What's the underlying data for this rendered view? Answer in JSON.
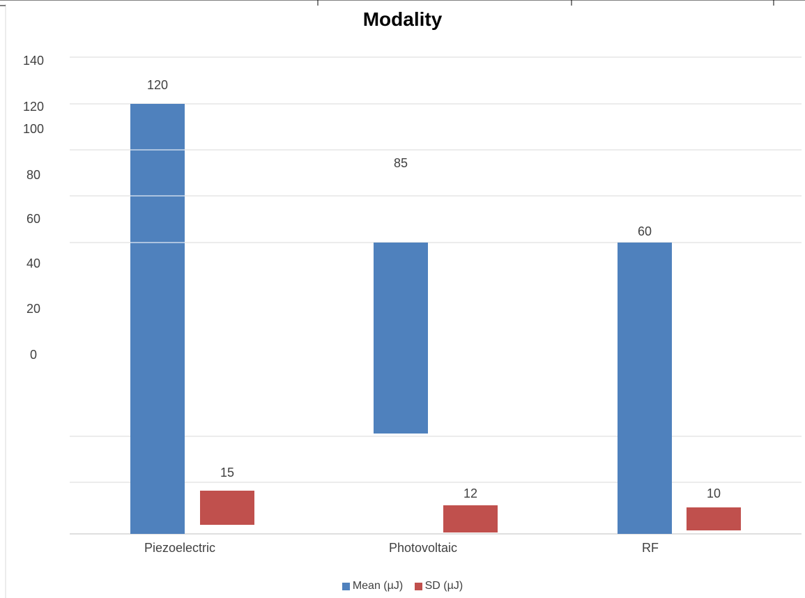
{
  "chart_data": {
    "type": "bar",
    "title": "Modality",
    "xlabel": "",
    "ylabel": "",
    "categories": [
      "Piezoelectric",
      "Photovoltaic",
      "RF"
    ],
    "y_tick_labels": [
      "140",
      "120",
      "100",
      "80",
      "60",
      "40",
      "20",
      "0"
    ],
    "ylim": [
      0,
      140
    ],
    "grid": true,
    "legend_position": "bottom",
    "series": [
      {
        "name": "Mean (µJ)",
        "color": "#4f81bd",
        "values": [
          120,
          85,
          60
        ],
        "data_labels": [
          "120",
          "85",
          "60"
        ]
      },
      {
        "name": "SD (µJ)",
        "color": "#c0504d",
        "values": [
          15,
          12,
          10
        ],
        "data_labels": [
          "15",
          "12",
          "10"
        ]
      }
    ]
  }
}
